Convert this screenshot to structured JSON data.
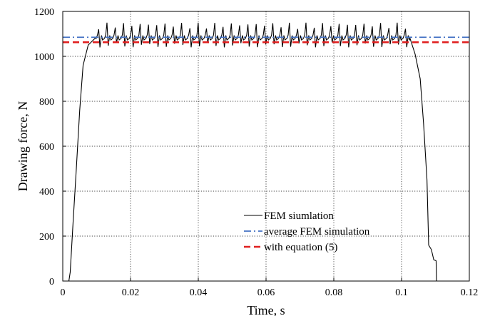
{
  "chart_data": {
    "type": "line",
    "xlabel": "Time, s",
    "ylabel": "Drawing force, N",
    "xlim": [
      0,
      0.12
    ],
    "ylim": [
      0,
      1200
    ],
    "x_ticks": [
      "0",
      "0.02",
      "0.04",
      "0.06",
      "0.08",
      "0.1",
      "0.12"
    ],
    "y_ticks": [
      "0",
      "200",
      "400",
      "600",
      "800",
      "1000",
      "1200"
    ],
    "grid": true,
    "legend_position": "bottom-center",
    "series": [
      {
        "name": "FEM siumlation",
        "style": "solid",
        "color": "#000000",
        "description_points": {
          "ramp_up": [
            [
              0.0018,
              0
            ],
            [
              0.0022,
              40
            ],
            [
              0.003,
              250
            ],
            [
              0.004,
              500
            ],
            [
              0.005,
              760
            ],
            [
              0.006,
              960
            ],
            [
              0.0075,
              1050
            ],
            [
              0.0095,
              1080
            ]
          ],
          "plateau_range": [
            0.0095,
            0.1025
          ],
          "plateau_mean": 1085,
          "plateau_peak": 1150,
          "plateau_trough": 1040,
          "plateau_peak_count": 38,
          "ramp_down": [
            [
              0.1025,
              1080
            ],
            [
              0.104,
              1010
            ],
            [
              0.1055,
              900
            ],
            [
              0.1065,
              700
            ],
            [
              0.1075,
              450
            ],
            [
              0.108,
              160
            ],
            [
              0.1088,
              140
            ],
            [
              0.1095,
              95
            ],
            [
              0.1102,
              90
            ],
            [
              0.1103,
              0
            ],
            [
              0.12,
              0
            ]
          ]
        }
      },
      {
        "name": "average FEM simulation",
        "style": "dashdot",
        "color": "#4472c4",
        "x": [
          0,
          0.12
        ],
        "y": [
          1085,
          1085
        ]
      },
      {
        "name": "with equation (5)",
        "style": "dashed",
        "color": "#e02020",
        "x": [
          0,
          0.12
        ],
        "y": [
          1063,
          1063
        ]
      }
    ]
  }
}
